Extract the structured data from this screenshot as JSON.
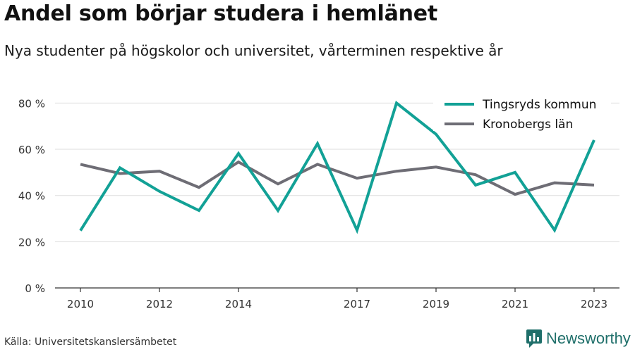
{
  "header": {
    "title": "Andel som börjar studera i hemlänet",
    "subtitle": "Nya studenter på högskolor och universitet, vårterminen respektive år"
  },
  "footer": {
    "source": "Källa: Universitetskanslersämbetet",
    "brand": "Newsworthy",
    "brand_logo_icon": "newsworthy-logo-icon"
  },
  "colors": {
    "tingsryd": "#12a196",
    "kronoberg": "#6e6d75",
    "grid": "#dddddd",
    "brand": "#1f6f6a"
  },
  "chart_data": {
    "type": "line",
    "x": [
      2010,
      2011,
      2012,
      2013,
      2014,
      2015,
      2016,
      2017,
      2018,
      2019,
      2020,
      2021,
      2022,
      2023
    ],
    "xticks": [
      "2010",
      "2012",
      "2014",
      "2017",
      "2019",
      "2021",
      "2023"
    ],
    "xtick_values": [
      2010,
      2012,
      2014,
      2017,
      2019,
      2021,
      2023
    ],
    "yticks": [
      "0 %",
      "20 %",
      "40 %",
      "60 %",
      "80 %"
    ],
    "ytick_values": [
      0,
      20,
      40,
      60,
      80
    ],
    "ylim": [
      0,
      85
    ],
    "grid": true,
    "legend_position": "top-right",
    "series": [
      {
        "name": "Tingsryds kommun",
        "color": "#12a196",
        "values": [
          24.8,
          52,
          41.8,
          33.5,
          58.2,
          33.5,
          62.5,
          25,
          80,
          66.5,
          44.5,
          50,
          25,
          64
        ]
      },
      {
        "name": "Kronobergs län",
        "color": "#6e6d75",
        "values": [
          53.5,
          49.5,
          50.5,
          43.5,
          54.5,
          45,
          53.5,
          47.5,
          50.5,
          52.3,
          49,
          40.5,
          45.5,
          44.5
        ]
      }
    ]
  }
}
